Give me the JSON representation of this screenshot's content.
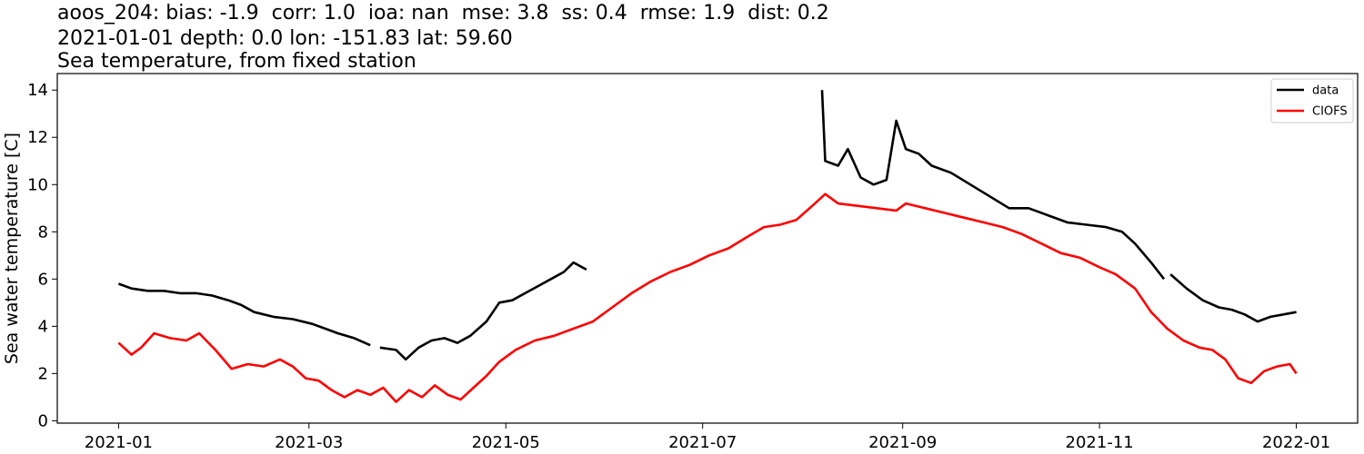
{
  "header": {
    "line1": "aoos_204: bias: -1.9  corr: 1.0  ioa: nan  mse: 3.8  ss: 0.4  rmse: 1.9  dist: 0.2",
    "line2": "2021-01-01 depth: 0.0 lon: -151.83 lat: 59.60",
    "line3": "Sea temperature, from fixed station"
  },
  "chart_data": {
    "type": "line",
    "ylabel": "Sea water temperature [C]",
    "xlabel": "",
    "ylim": [
      -0.1,
      14.7
    ],
    "xlim": [
      "2020-12-13",
      "2022-01-20"
    ],
    "grid": false,
    "legend_position": "top-right",
    "yticks": [
      0,
      2,
      4,
      6,
      8,
      10,
      12,
      14
    ],
    "xticks": [
      "2021-01-01",
      "2021-03-01",
      "2021-05-01",
      "2021-07-01",
      "2021-09-01",
      "2021-11-01",
      "2022-01-01"
    ],
    "series": [
      {
        "name": "data",
        "color": "#000000",
        "points": [
          [
            "2021-01-01",
            5.8
          ],
          [
            "2021-01-05",
            5.6
          ],
          [
            "2021-01-10",
            5.5
          ],
          [
            "2021-01-15",
            5.5
          ],
          [
            "2021-01-20",
            5.4
          ],
          [
            "2021-01-25",
            5.4
          ],
          [
            "2021-01-30",
            5.3
          ],
          [
            "2021-02-04",
            5.1
          ],
          [
            "2021-02-08",
            4.9
          ],
          [
            "2021-02-12",
            4.6
          ],
          [
            "2021-02-18",
            4.4
          ],
          [
            "2021-02-24",
            4.3
          ],
          [
            "2021-03-02",
            4.1
          ],
          [
            "2021-03-06",
            3.9
          ],
          [
            "2021-03-10",
            3.7
          ],
          [
            "2021-03-15",
            3.5
          ],
          [
            "2021-03-20",
            3.2
          ],
          null,
          [
            "2021-03-23",
            3.1
          ],
          [
            "2021-03-28",
            3.0
          ],
          [
            "2021-03-31",
            2.6
          ],
          [
            "2021-04-04",
            3.1
          ],
          [
            "2021-04-08",
            3.4
          ],
          [
            "2021-04-12",
            3.5
          ],
          [
            "2021-04-16",
            3.3
          ],
          [
            "2021-04-20",
            3.6
          ],
          [
            "2021-04-25",
            4.2
          ],
          [
            "2021-04-29",
            5.0
          ],
          [
            "2021-05-03",
            5.1
          ],
          [
            "2021-05-07",
            5.4
          ],
          [
            "2021-05-11",
            5.7
          ],
          [
            "2021-05-15",
            6.0
          ],
          [
            "2021-05-19",
            6.3
          ],
          [
            "2021-05-22",
            6.7
          ],
          [
            "2021-05-26",
            6.4
          ],
          null,
          [
            "2021-08-07",
            14.0
          ],
          [
            "2021-08-08",
            11.0
          ],
          [
            "2021-08-12",
            10.8
          ],
          [
            "2021-08-15",
            11.5
          ],
          [
            "2021-08-19",
            10.3
          ],
          [
            "2021-08-23",
            10.0
          ],
          [
            "2021-08-27",
            10.2
          ],
          [
            "2021-08-30",
            12.7
          ],
          [
            "2021-09-02",
            11.5
          ],
          [
            "2021-09-06",
            11.3
          ],
          [
            "2021-09-10",
            10.8
          ],
          [
            "2021-09-16",
            10.5
          ],
          [
            "2021-09-22",
            10.0
          ],
          [
            "2021-09-28",
            9.5
          ],
          [
            "2021-10-04",
            9.0
          ],
          [
            "2021-10-10",
            9.0
          ],
          [
            "2021-10-16",
            8.7
          ],
          [
            "2021-10-22",
            8.4
          ],
          [
            "2021-10-28",
            8.3
          ],
          [
            "2021-11-03",
            8.2
          ],
          [
            "2021-11-08",
            8.0
          ],
          [
            "2021-11-12",
            7.5
          ],
          [
            "2021-11-17",
            6.7
          ],
          [
            "2021-11-21",
            6.0
          ],
          null,
          [
            "2021-11-23",
            6.2
          ],
          [
            "2021-11-28",
            5.6
          ],
          [
            "2021-12-03",
            5.1
          ],
          [
            "2021-12-08",
            4.8
          ],
          [
            "2021-12-12",
            4.7
          ],
          [
            "2021-12-16",
            4.5
          ],
          [
            "2021-12-20",
            4.2
          ],
          [
            "2021-12-24",
            4.4
          ],
          [
            "2021-12-28",
            4.5
          ],
          [
            "2022-01-01",
            4.6
          ]
        ]
      },
      {
        "name": "CIOFS",
        "color": "#ff0000",
        "points": [
          [
            "2021-01-01",
            3.3
          ],
          [
            "2021-01-05",
            2.8
          ],
          [
            "2021-01-08",
            3.1
          ],
          [
            "2021-01-12",
            3.7
          ],
          [
            "2021-01-17",
            3.5
          ],
          [
            "2021-01-22",
            3.4
          ],
          [
            "2021-01-26",
            3.7
          ],
          [
            "2021-01-31",
            3.0
          ],
          [
            "2021-02-05",
            2.2
          ],
          [
            "2021-02-10",
            2.4
          ],
          [
            "2021-02-15",
            2.3
          ],
          [
            "2021-02-20",
            2.6
          ],
          [
            "2021-02-24",
            2.3
          ],
          [
            "2021-02-28",
            1.8
          ],
          [
            "2021-03-04",
            1.7
          ],
          [
            "2021-03-08",
            1.3
          ],
          [
            "2021-03-12",
            1.0
          ],
          [
            "2021-03-16",
            1.3
          ],
          [
            "2021-03-20",
            1.1
          ],
          [
            "2021-03-24",
            1.4
          ],
          [
            "2021-03-28",
            0.8
          ],
          [
            "2021-04-01",
            1.3
          ],
          [
            "2021-04-05",
            1.0
          ],
          [
            "2021-04-09",
            1.5
          ],
          [
            "2021-04-13",
            1.1
          ],
          [
            "2021-04-17",
            0.9
          ],
          [
            "2021-04-21",
            1.4
          ],
          [
            "2021-04-25",
            1.9
          ],
          [
            "2021-04-29",
            2.5
          ],
          [
            "2021-05-04",
            3.0
          ],
          [
            "2021-05-10",
            3.4
          ],
          [
            "2021-05-16",
            3.6
          ],
          [
            "2021-05-22",
            3.9
          ],
          [
            "2021-05-28",
            4.2
          ],
          [
            "2021-06-03",
            4.8
          ],
          [
            "2021-06-09",
            5.4
          ],
          [
            "2021-06-15",
            5.9
          ],
          [
            "2021-06-21",
            6.3
          ],
          [
            "2021-06-27",
            6.6
          ],
          [
            "2021-07-03",
            7.0
          ],
          [
            "2021-07-09",
            7.3
          ],
          [
            "2021-07-15",
            7.8
          ],
          [
            "2021-07-20",
            8.2
          ],
          [
            "2021-07-25",
            8.3
          ],
          [
            "2021-07-30",
            8.5
          ],
          [
            "2021-08-04",
            9.1
          ],
          [
            "2021-08-08",
            9.6
          ],
          [
            "2021-08-12",
            9.2
          ],
          [
            "2021-08-18",
            9.1
          ],
          [
            "2021-08-24",
            9.0
          ],
          [
            "2021-08-30",
            8.9
          ],
          [
            "2021-09-02",
            9.2
          ],
          [
            "2021-09-08",
            9.0
          ],
          [
            "2021-09-14",
            8.8
          ],
          [
            "2021-09-20",
            8.6
          ],
          [
            "2021-09-26",
            8.4
          ],
          [
            "2021-10-02",
            8.2
          ],
          [
            "2021-10-08",
            7.9
          ],
          [
            "2021-10-14",
            7.5
          ],
          [
            "2021-10-20",
            7.1
          ],
          [
            "2021-10-26",
            6.9
          ],
          [
            "2021-11-01",
            6.5
          ],
          [
            "2021-11-06",
            6.2
          ],
          [
            "2021-11-12",
            5.6
          ],
          [
            "2021-11-17",
            4.6
          ],
          [
            "2021-11-22",
            3.9
          ],
          [
            "2021-11-27",
            3.4
          ],
          [
            "2021-12-02",
            3.1
          ],
          [
            "2021-12-06",
            3.0
          ],
          [
            "2021-12-10",
            2.6
          ],
          [
            "2021-12-14",
            1.8
          ],
          [
            "2021-12-18",
            1.6
          ],
          [
            "2021-12-22",
            2.1
          ],
          [
            "2021-12-26",
            2.3
          ],
          [
            "2021-12-30",
            2.4
          ],
          [
            "2022-01-01",
            2.0
          ]
        ]
      }
    ]
  }
}
